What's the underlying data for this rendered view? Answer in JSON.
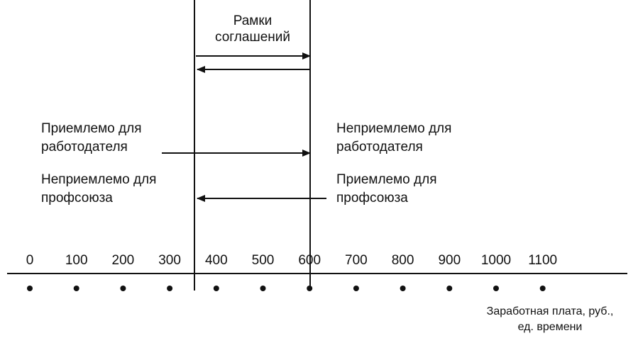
{
  "title": [
    "Рамки",
    "соглашений"
  ],
  "left": {
    "upper": [
      "Приемлемо для",
      "работодателя"
    ],
    "lower": [
      "Неприемлемо для",
      "профсоюза"
    ]
  },
  "right": {
    "upper": [
      "Неприемлемо для",
      "работодателя"
    ],
    "lower": [
      "Приемлемо для",
      "профсоюза"
    ]
  },
  "axis": {
    "ticks": [
      0,
      100,
      200,
      300,
      400,
      500,
      600,
      700,
      800,
      900,
      1000,
      1100
    ],
    "label": [
      "Заработная плата, руб.,",
      "ед. времени"
    ]
  }
}
